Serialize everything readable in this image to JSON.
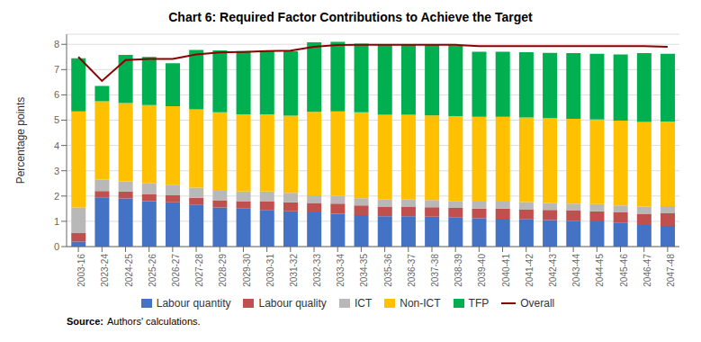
{
  "chart_data": {
    "type": "bar",
    "title": "Chart 6: Required Factor Contributions to Achieve the Target",
    "ylabel": "Percentage points",
    "categories": [
      "2003-16",
      "2023-24",
      "2024-25",
      "2025-26",
      "2026-27",
      "2027-28",
      "2028-29",
      "2029-30",
      "2030-31",
      "2031-32",
      "2032-33",
      "2033-34",
      "2034-35",
      "2035-36",
      "2036-37",
      "2037-38",
      "2038-39",
      "2039-40",
      "2040-41",
      "2041-42",
      "2042-43",
      "2043-44",
      "2044-45",
      "2045-46",
      "2046-47",
      "2047-48"
    ],
    "series": [
      {
        "name": "Labour quantity",
        "type": "bar",
        "color": "#4472C4",
        "values": [
          0.2,
          1.95,
          1.9,
          1.8,
          1.75,
          1.65,
          1.55,
          1.5,
          1.45,
          1.4,
          1.35,
          1.3,
          1.25,
          1.2,
          1.2,
          1.18,
          1.15,
          1.12,
          1.1,
          1.08,
          1.05,
          1.02,
          1.0,
          0.95,
          0.85,
          0.82
        ]
      },
      {
        "name": "Labour quality",
        "type": "bar",
        "color": "#C0504D",
        "values": [
          0.35,
          0.25,
          0.28,
          0.28,
          0.28,
          0.28,
          0.28,
          0.3,
          0.35,
          0.35,
          0.38,
          0.4,
          0.38,
          0.38,
          0.38,
          0.38,
          0.38,
          0.38,
          0.4,
          0.4,
          0.4,
          0.4,
          0.4,
          0.4,
          0.45,
          0.5
        ]
      },
      {
        "name": "ICT",
        "type": "bar",
        "color": "#B8B8B8",
        "values": [
          1.0,
          0.45,
          0.4,
          0.42,
          0.42,
          0.4,
          0.38,
          0.38,
          0.38,
          0.38,
          0.3,
          0.3,
          0.28,
          0.28,
          0.28,
          0.28,
          0.28,
          0.28,
          0.28,
          0.28,
          0.28,
          0.28,
          0.28,
          0.28,
          0.28,
          0.28
        ]
      },
      {
        "name": "Non-ICT",
        "type": "bar",
        "color": "#FFC000",
        "values": [
          3.8,
          3.1,
          3.1,
          3.1,
          3.1,
          3.1,
          3.1,
          3.05,
          3.05,
          3.05,
          3.3,
          3.35,
          3.4,
          3.35,
          3.35,
          3.35,
          3.35,
          3.35,
          3.35,
          3.35,
          3.35,
          3.35,
          3.35,
          3.35,
          3.35,
          3.35
        ]
      },
      {
        "name": "TFP",
        "type": "bar",
        "color": "#00B050",
        "values": [
          2.1,
          0.6,
          1.9,
          1.9,
          1.7,
          2.35,
          2.45,
          2.5,
          2.52,
          2.55,
          2.75,
          2.75,
          2.72,
          2.8,
          2.8,
          2.8,
          2.8,
          2.58,
          2.58,
          2.58,
          2.58,
          2.6,
          2.6,
          2.62,
          2.72,
          2.68
        ]
      },
      {
        "name": "Overall",
        "type": "line",
        "color": "#8B0000",
        "values": [
          7.5,
          6.55,
          7.38,
          7.42,
          7.42,
          7.6,
          7.68,
          7.7,
          7.73,
          7.75,
          7.9,
          7.97,
          7.98,
          7.98,
          7.98,
          7.98,
          7.98,
          7.93,
          7.93,
          7.93,
          7.93,
          7.93,
          7.93,
          7.93,
          7.93,
          7.9
        ]
      }
    ],
    "stacked": true,
    "ylim": [
      0,
      8.4
    ],
    "yticks": [
      0,
      1,
      2,
      3,
      4,
      5,
      6,
      7,
      8
    ],
    "grid": true,
    "legend": "bottom",
    "annotations": [
      "Source:",
      "Authors' calculations."
    ]
  }
}
